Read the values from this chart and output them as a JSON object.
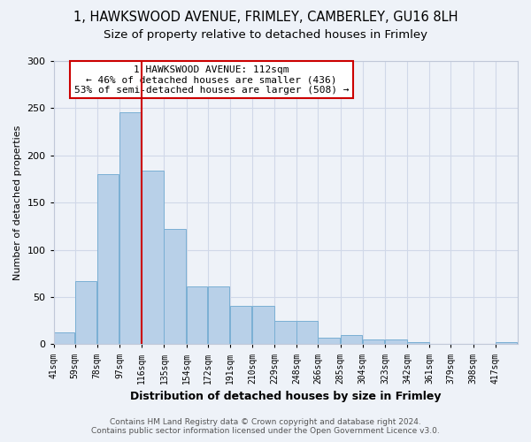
{
  "title1": "1, HAWKSWOOD AVENUE, FRIMLEY, CAMBERLEY, GU16 8LH",
  "title2": "Size of property relative to detached houses in Frimley",
  "xlabel": "Distribution of detached houses by size in Frimley",
  "ylabel": "Number of detached properties",
  "footnote1": "Contains HM Land Registry data © Crown copyright and database right 2024.",
  "footnote2": "Contains public sector information licensed under the Open Government Licence v3.0.",
  "annotation_line1": "1 HAWKSWOOD AVENUE: 112sqm",
  "annotation_line2": "← 46% of detached houses are smaller (436)",
  "annotation_line3": "53% of semi-detached houses are larger (508) →",
  "bar_values": [
    13,
    67,
    180,
    246,
    184,
    122,
    61,
    61,
    41,
    41,
    25,
    25,
    7,
    10,
    5,
    5,
    2,
    0,
    0,
    0,
    2
  ],
  "bin_labels": [
    "41sqm",
    "59sqm",
    "78sqm",
    "97sqm",
    "116sqm",
    "135sqm",
    "154sqm",
    "172sqm",
    "191sqm",
    "210sqm",
    "229sqm",
    "248sqm",
    "266sqm",
    "285sqm",
    "304sqm",
    "323sqm",
    "342sqm",
    "361sqm",
    "379sqm",
    "398sqm",
    "417sqm"
  ],
  "bar_color": "#b8d0e8",
  "bar_edge_color": "#7aafd4",
  "vline_color": "#cc0000",
  "annotation_box_edge": "#cc0000",
  "annotation_box_face": "#ffffff",
  "ylim": [
    0,
    300
  ],
  "yticks": [
    0,
    50,
    100,
    150,
    200,
    250,
    300
  ],
  "grid_color": "#d0d8e8",
  "bg_color": "#eef2f8",
  "title1_fontsize": 10.5,
  "title2_fontsize": 9.5,
  "bin_width": 19
}
